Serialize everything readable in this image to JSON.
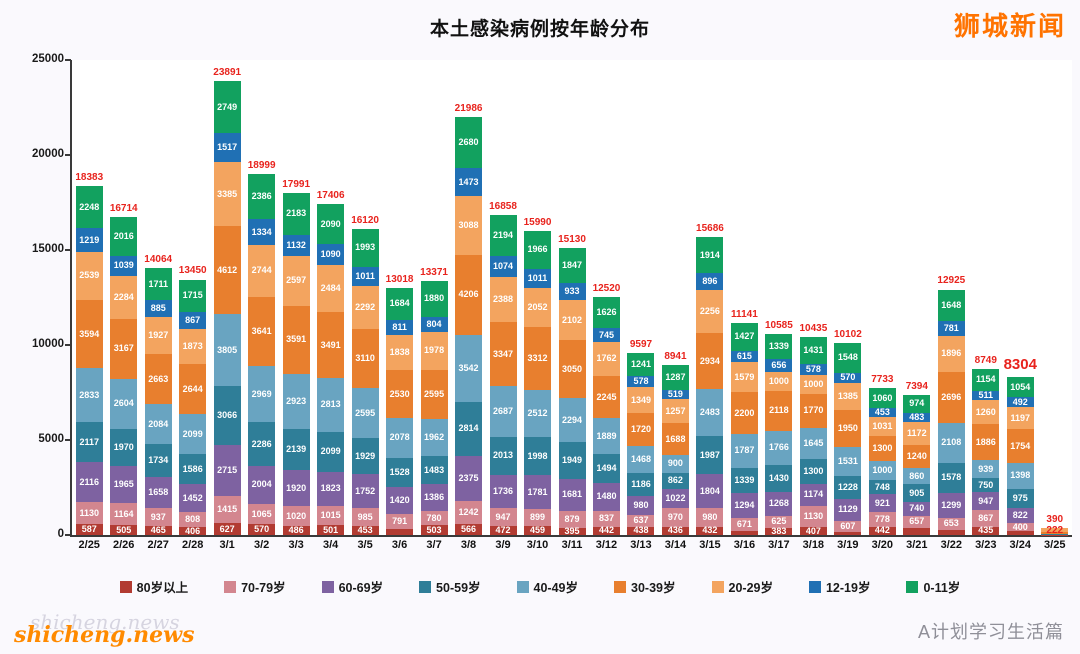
{
  "page": {
    "brand": "狮城新闻",
    "watermark": "shicheng.news",
    "watermark_ghost": "shicheng.news",
    "credit": "A计划学习生活篇"
  },
  "chart_data": {
    "type": "bar",
    "subtype": "stacked",
    "title": "本土感染病例按年龄分布",
    "xlabel": "",
    "ylabel": "",
    "ylim": [
      0,
      25000
    ],
    "yticks": [
      0,
      5000,
      10000,
      15000,
      20000,
      25000
    ],
    "grid": false,
    "legend_position": "bottom",
    "total_label_color": "#e8231d",
    "emphasis_category": "3/24",
    "extra_label": {
      "category": "3/25",
      "text": "222"
    },
    "categories": [
      "2/25",
      "2/26",
      "2/27",
      "2/28",
      "3/1",
      "3/2",
      "3/3",
      "3/4",
      "3/5",
      "3/6",
      "3/7",
      "3/8",
      "3/9",
      "3/10",
      "3/11",
      "3/12",
      "3/13",
      "3/14",
      "3/15",
      "3/16",
      "3/17",
      "3/18",
      "3/19",
      "3/20",
      "3/21",
      "3/22",
      "3/23",
      "3/24",
      "3/25"
    ],
    "totals": [
      18383,
      16714,
      14064,
      13450,
      23891,
      18999,
      17991,
      17406,
      16120,
      13018,
      13371,
      21986,
      16858,
      15990,
      15130,
      12520,
      9597,
      8941,
      15686,
      11141,
      10585,
      10435,
      10102,
      7733,
      7394,
      12925,
      8749,
      8304,
      390
    ],
    "series": [
      {
        "name": "80岁以上",
        "color": "#b23b32",
        "values": [
          587,
          505,
          465,
          406,
          627,
          570,
          486,
          501,
          453,
          338,
          503,
          566,
          472,
          459,
          395,
          442,
          438,
          436,
          432,
          229,
          383,
          407,
          154,
          442,
          363,
          266,
          435,
          212,
          5
        ]
      },
      {
        "name": "70-79岁",
        "color": "#d3868f",
        "values": [
          1130,
          1164,
          937,
          808,
          1415,
          1065,
          1020,
          1015,
          985,
          791,
          780,
          1242,
          947,
          899,
          879,
          837,
          637,
          970,
          980,
          671,
          625,
          1130,
          607,
          778,
          657,
          653,
          867,
          400,
          8
        ]
      },
      {
        "name": "60-69岁",
        "color": "#7e62a1",
        "values": [
          2116,
          1965,
          1658,
          1452,
          2715,
          2004,
          1920,
          1823,
          1752,
          1420,
          1386,
          2375,
          1736,
          1781,
          1681,
          1480,
          980,
          1022,
          1804,
          1294,
          1268,
          1174,
          1129,
          921,
          740,
          1299,
          947,
          822,
          12
        ]
      },
      {
        "name": "50-59岁",
        "color": "#2f7e98",
        "values": [
          2117,
          1970,
          1734,
          1586,
          3066,
          2286,
          2139,
          2099,
          1929,
          1528,
          1483,
          2814,
          2013,
          1998,
          1949,
          1494,
          1186,
          862,
          1987,
          1339,
          1430,
          1300,
          1228,
          748,
          905,
          1578,
          750,
          975,
          18
        ]
      },
      {
        "name": "40-49岁",
        "color": "#69a4c1",
        "values": [
          2833,
          2604,
          2084,
          2099,
          3805,
          2969,
          2923,
          2813,
          2595,
          2078,
          1962,
          3542,
          2687,
          2512,
          2294,
          1889,
          1468,
          900,
          2483,
          1787,
          1766,
          1645,
          1531,
          1000,
          860,
          2108,
          939,
          1398,
          30
        ]
      },
      {
        "name": "30-39岁",
        "color": "#e87f2e",
        "values": [
          3594,
          3167,
          2663,
          2644,
          4612,
          3641,
          3591,
          3491,
          3110,
          2530,
          2595,
          4206,
          3347,
          3312,
          3050,
          2245,
          1720,
          1688,
          2934,
          2200,
          2118,
          1770,
          1950,
          1300,
          1240,
          2696,
          1886,
          1754,
          90
        ]
      },
      {
        "name": "20-29岁",
        "color": "#f3a45f",
        "values": [
          2539,
          2284,
          1927,
          1873,
          3385,
          2744,
          2597,
          2484,
          2292,
          1838,
          1978,
          3088,
          2388,
          2052,
          2102,
          1762,
          1349,
          1257,
          2256,
          1579,
          1000,
          1000,
          1385,
          1031,
          1172,
          1896,
          1260,
          1197,
          222
        ]
      },
      {
        "name": "12-19岁",
        "color": "#2070b4",
        "values": [
          1219,
          1039,
          885,
          867,
          1517,
          1334,
          1132,
          1090,
          1011,
          811,
          804,
          1473,
          1074,
          1011,
          933,
          745,
          578,
          519,
          896,
          615,
          656,
          578,
          570,
          453,
          483,
          781,
          511,
          492,
          2
        ]
      },
      {
        "name": "0-11岁",
        "color": "#12a15f",
        "values": [
          2248,
          2016,
          1711,
          1715,
          2749,
          2386,
          2183,
          2090,
          1993,
          1684,
          1880,
          2680,
          2194,
          1966,
          1847,
          1626,
          1241,
          1287,
          1914,
          1427,
          1339,
          1431,
          1548,
          1060,
          974,
          1648,
          1154,
          1054,
          3
        ]
      }
    ]
  }
}
